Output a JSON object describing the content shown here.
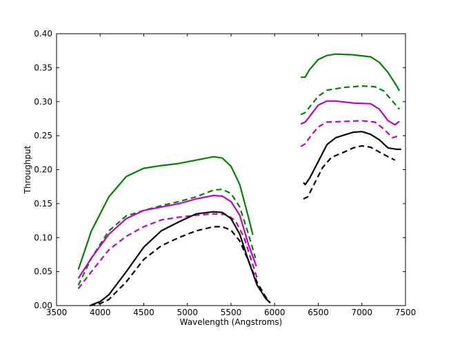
{
  "chart_data": {
    "type": "line",
    "title": "",
    "xlabel": "Wavelength (Angstroms)",
    "ylabel": "Throughput",
    "xlim": [
      3500,
      7500
    ],
    "ylim": [
      0.0,
      0.4
    ],
    "xticks": [
      3500,
      4000,
      4500,
      5000,
      5500,
      6000,
      6500,
      7000,
      7500
    ],
    "yticks": [
      0.0,
      0.05,
      0.1,
      0.15,
      0.2,
      0.25,
      0.3,
      0.35,
      0.4
    ],
    "xtick_labels": [
      "3500",
      "4000",
      "4500",
      "5000",
      "5500",
      "6000",
      "6500",
      "7000",
      "7500"
    ],
    "ytick_labels": [
      "0.00",
      "0.05",
      "0.10",
      "0.15",
      "0.20",
      "0.25",
      "0.30",
      "0.35",
      "0.40"
    ],
    "grid": false,
    "legend": "none",
    "series": [
      {
        "color": "#008000",
        "style": "solid",
        "segments": [
          [
            [
              3750,
              0.053
            ],
            [
              3900,
              0.11
            ],
            [
              4100,
              0.16
            ],
            [
              4300,
              0.19
            ],
            [
              4500,
              0.202
            ],
            [
              4700,
              0.206
            ],
            [
              4900,
              0.209
            ],
            [
              5100,
              0.214
            ],
            [
              5300,
              0.219
            ],
            [
              5400,
              0.217
            ],
            [
              5500,
              0.205
            ],
            [
              5600,
              0.178
            ],
            [
              5700,
              0.13
            ],
            [
              5750,
              0.104
            ]
          ],
          [
            [
              6300,
              0.336
            ],
            [
              6350,
              0.336
            ],
            [
              6400,
              0.347
            ],
            [
              6500,
              0.362
            ],
            [
              6600,
              0.368
            ],
            [
              6700,
              0.37
            ],
            [
              6900,
              0.369
            ],
            [
              7100,
              0.366
            ],
            [
              7200,
              0.358
            ],
            [
              7300,
              0.343
            ],
            [
              7400,
              0.323
            ],
            [
              7430,
              0.316
            ]
          ]
        ]
      },
      {
        "color": "#008000",
        "style": "dashed",
        "segments": [
          [
            [
              3750,
              0.03
            ],
            [
              3900,
              0.07
            ],
            [
              4100,
              0.11
            ],
            [
              4300,
              0.132
            ],
            [
              4500,
              0.14
            ],
            [
              4700,
              0.147
            ],
            [
              4900,
              0.153
            ],
            [
              5100,
              0.16
            ],
            [
              5300,
              0.17
            ],
            [
              5400,
              0.171
            ],
            [
              5500,
              0.165
            ],
            [
              5600,
              0.145
            ],
            [
              5700,
              0.105
            ],
            [
              5780,
              0.07
            ]
          ],
          [
            [
              6300,
              0.281
            ],
            [
              6350,
              0.284
            ],
            [
              6400,
              0.292
            ],
            [
              6500,
              0.308
            ],
            [
              6600,
              0.317
            ],
            [
              6800,
              0.321
            ],
            [
              7000,
              0.323
            ],
            [
              7150,
              0.322
            ],
            [
              7250,
              0.316
            ],
            [
              7350,
              0.301
            ],
            [
              7430,
              0.289
            ]
          ]
        ]
      },
      {
        "color": "#c000c0",
        "style": "solid",
        "segments": [
          [
            [
              3750,
              0.04
            ],
            [
              3900,
              0.07
            ],
            [
              4100,
              0.105
            ],
            [
              4300,
              0.128
            ],
            [
              4500,
              0.14
            ],
            [
              4700,
              0.145
            ],
            [
              4900,
              0.15
            ],
            [
              5100,
              0.157
            ],
            [
              5300,
              0.162
            ],
            [
              5400,
              0.161
            ],
            [
              5500,
              0.153
            ],
            [
              5600,
              0.133
            ],
            [
              5700,
              0.09
            ],
            [
              5790,
              0.058
            ]
          ],
          [
            [
              6300,
              0.267
            ],
            [
              6350,
              0.27
            ],
            [
              6400,
              0.278
            ],
            [
              6500,
              0.295
            ],
            [
              6600,
              0.301
            ],
            [
              6700,
              0.301
            ],
            [
              6900,
              0.298
            ],
            [
              7100,
              0.297
            ],
            [
              7200,
              0.289
            ],
            [
              7300,
              0.272
            ],
            [
              7380,
              0.266
            ],
            [
              7430,
              0.271
            ]
          ]
        ]
      },
      {
        "color": "#c000c0",
        "style": "dashed",
        "segments": [
          [
            [
              3750,
              0.025
            ],
            [
              3900,
              0.05
            ],
            [
              4100,
              0.082
            ],
            [
              4300,
              0.102
            ],
            [
              4500,
              0.116
            ],
            [
              4700,
              0.126
            ],
            [
              4900,
              0.13
            ],
            [
              5100,
              0.133
            ],
            [
              5300,
              0.135
            ],
            [
              5450,
              0.134
            ],
            [
              5550,
              0.125
            ],
            [
              5650,
              0.1
            ],
            [
              5750,
              0.06
            ],
            [
              5800,
              0.04
            ]
          ],
          [
            [
              6300,
              0.234
            ],
            [
              6350,
              0.238
            ],
            [
              6400,
              0.247
            ],
            [
              6500,
              0.263
            ],
            [
              6600,
              0.27
            ],
            [
              6800,
              0.271
            ],
            [
              7000,
              0.272
            ],
            [
              7150,
              0.27
            ],
            [
              7250,
              0.26
            ],
            [
              7350,
              0.247
            ],
            [
              7430,
              0.25
            ]
          ]
        ]
      },
      {
        "color": "#000000",
        "style": "solid",
        "segments": [
          [
            [
              3900,
              0.001
            ],
            [
              4000,
              0.006
            ],
            [
              4100,
              0.016
            ],
            [
              4300,
              0.05
            ],
            [
              4500,
              0.086
            ],
            [
              4700,
              0.11
            ],
            [
              4900,
              0.123
            ],
            [
              5100,
              0.135
            ],
            [
              5300,
              0.138
            ],
            [
              5400,
              0.137
            ],
            [
              5500,
              0.128
            ],
            [
              5600,
              0.105
            ],
            [
              5700,
              0.066
            ],
            [
              5800,
              0.03
            ],
            [
              5900,
              0.01
            ],
            [
              5950,
              0.004
            ]
          ],
          [
            [
              6330,
              0.181
            ],
            [
              6350,
              0.178
            ],
            [
              6400,
              0.187
            ],
            [
              6500,
              0.212
            ],
            [
              6600,
              0.237
            ],
            [
              6700,
              0.247
            ],
            [
              6800,
              0.251
            ],
            [
              6900,
              0.255
            ],
            [
              7000,
              0.256
            ],
            [
              7100,
              0.252
            ],
            [
              7200,
              0.244
            ],
            [
              7300,
              0.232
            ],
            [
              7400,
              0.23
            ],
            [
              7450,
              0.23
            ]
          ]
        ]
      },
      {
        "color": "#000000",
        "style": "dashed",
        "segments": [
          [
            [
              3880,
              0.0
            ],
            [
              4000,
              0.003
            ],
            [
              4100,
              0.009
            ],
            [
              4300,
              0.035
            ],
            [
              4500,
              0.068
            ],
            [
              4700,
              0.088
            ],
            [
              4900,
              0.1
            ],
            [
              5100,
              0.11
            ],
            [
              5300,
              0.116
            ],
            [
              5400,
              0.116
            ],
            [
              5500,
              0.111
            ],
            [
              5600,
              0.095
            ],
            [
              5700,
              0.066
            ],
            [
              5800,
              0.034
            ],
            [
              5900,
              0.012
            ],
            [
              5950,
              0.004
            ]
          ],
          [
            [
              6330,
              0.157
            ],
            [
              6380,
              0.16
            ],
            [
              6450,
              0.178
            ],
            [
              6550,
              0.203
            ],
            [
              6650,
              0.218
            ],
            [
              6800,
              0.226
            ],
            [
              6900,
              0.232
            ],
            [
              7000,
              0.235
            ],
            [
              7100,
              0.233
            ],
            [
              7200,
              0.226
            ],
            [
              7300,
              0.219
            ],
            [
              7380,
              0.214
            ]
          ]
        ]
      }
    ]
  }
}
